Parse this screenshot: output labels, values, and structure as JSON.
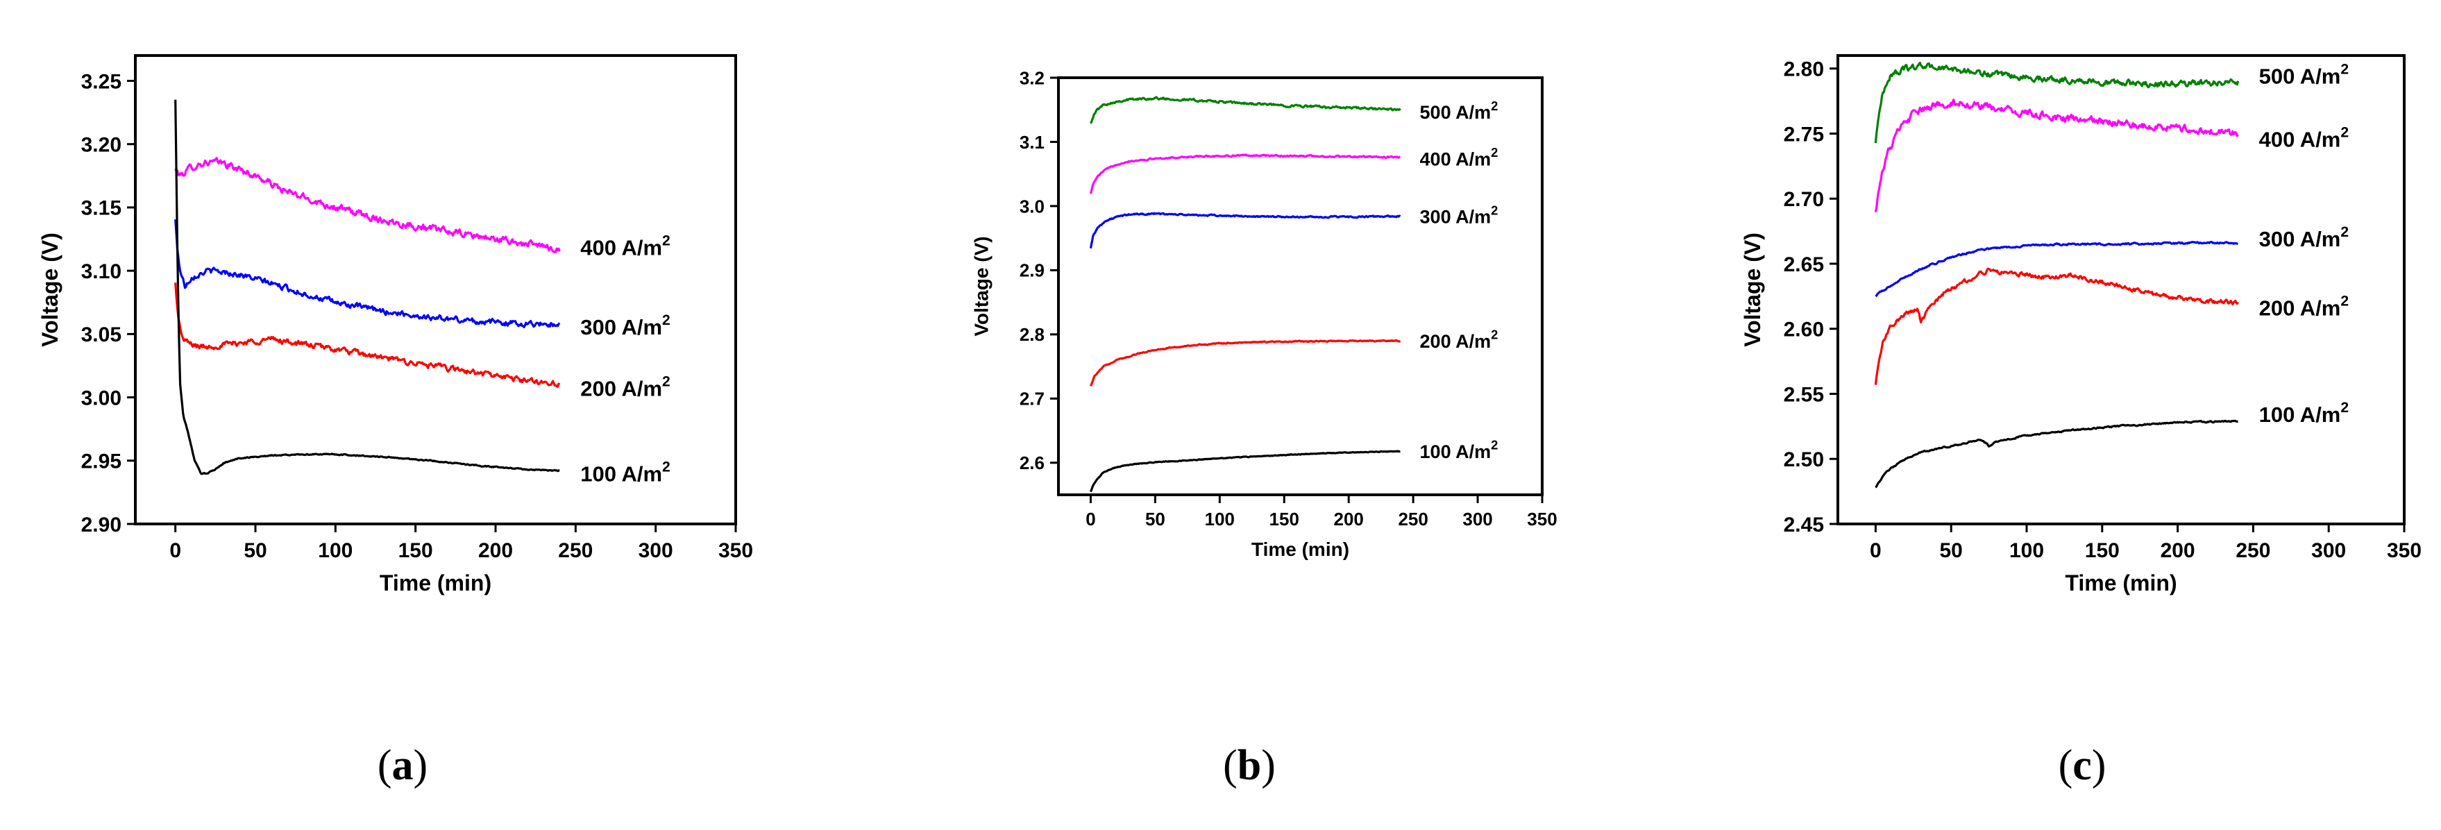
{
  "chart_data": [
    {
      "type": "line",
      "caption": "(a)",
      "xlabel": "Time (min)",
      "ylabel": "Voltage (V)",
      "xlim": [
        -25,
        350
      ],
      "ylim": [
        2.9,
        3.27
      ],
      "xticks": [
        0,
        50,
        100,
        150,
        200,
        250,
        300,
        350
      ],
      "yticks": [
        2.9,
        2.95,
        3.0,
        3.05,
        3.1,
        3.15,
        3.2,
        3.25
      ],
      "ytick_labels": [
        "2.90",
        "2.95",
        "3.00",
        "3.05",
        "3.10",
        "3.15",
        "3.20",
        "3.25"
      ],
      "grid": false,
      "series": [
        {
          "name": "400 A/m²",
          "color": "#ff00ff",
          "noise": 0.005,
          "x": [
            0,
            3,
            10,
            20,
            30,
            50,
            70,
            100,
            130,
            160,
            190,
            220,
            240
          ],
          "y": [
            3.18,
            3.175,
            3.182,
            3.186,
            3.185,
            3.175,
            3.162,
            3.15,
            3.14,
            3.133,
            3.127,
            3.121,
            3.117
          ]
        },
        {
          "name": "300 A/m²",
          "color": "#0000ff",
          "noise": 0.004,
          "x": [
            0,
            1,
            3,
            6,
            10,
            20,
            30,
            40,
            60,
            80,
            100,
            130,
            160,
            190,
            220,
            240
          ],
          "y": [
            3.14,
            3.12,
            3.1,
            3.088,
            3.095,
            3.1,
            3.099,
            3.097,
            3.09,
            3.082,
            3.075,
            3.068,
            3.063,
            3.06,
            3.058,
            3.058
          ]
        },
        {
          "name": "200 A/m²",
          "color": "#ff0000",
          "noise": 0.004,
          "x": [
            0,
            2,
            5,
            10,
            15,
            20,
            40,
            60,
            80,
            100,
            130,
            160,
            190,
            220,
            240
          ],
          "y": [
            3.09,
            3.06,
            3.045,
            3.042,
            3.04,
            3.04,
            3.043,
            3.046,
            3.042,
            3.038,
            3.031,
            3.025,
            3.019,
            3.013,
            3.011
          ]
        },
        {
          "name": "100 A/m²",
          "color": "#000000",
          "noise": 0.0008,
          "x": [
            0,
            1,
            2,
            3,
            5,
            8,
            12,
            16,
            20,
            25,
            30,
            40,
            60,
            80,
            100,
            130,
            160,
            190,
            220,
            240
          ],
          "y": [
            3.235,
            3.14,
            3.06,
            3.01,
            2.985,
            2.972,
            2.95,
            2.94,
            2.94,
            2.943,
            2.948,
            2.952,
            2.954,
            2.955,
            2.955,
            2.953,
            2.95,
            2.946,
            2.943,
            2.942
          ]
        }
      ]
    },
    {
      "type": "line",
      "caption": "(b)",
      "xlabel": "Time (min)",
      "ylabel": "Voltage (V)",
      "xlim": [
        -25,
        350
      ],
      "ylim": [
        2.55,
        3.2
      ],
      "xticks": [
        0,
        50,
        100,
        150,
        200,
        250,
        300,
        350
      ],
      "yticks": [
        2.6,
        2.7,
        2.8,
        2.9,
        3.0,
        3.1,
        3.2
      ],
      "ytick_labels": [
        "2.6",
        "2.7",
        "2.8",
        "2.9",
        "3.0",
        "3.1",
        "3.2"
      ],
      "grid": false,
      "series": [
        {
          "name": "500 A/m²",
          "color": "#008000",
          "noise": 0.003,
          "x": [
            0,
            2,
            5,
            10,
            20,
            30,
            50,
            80,
            120,
            160,
            200,
            240
          ],
          "y": [
            3.13,
            3.14,
            3.15,
            3.158,
            3.163,
            3.166,
            3.168,
            3.165,
            3.16,
            3.156,
            3.153,
            3.15
          ]
        },
        {
          "name": "400 A/m²",
          "color": "#ff00ff",
          "noise": 0.002,
          "x": [
            0,
            2,
            5,
            10,
            20,
            30,
            50,
            80,
            120,
            160,
            200,
            240
          ],
          "y": [
            3.02,
            3.035,
            3.045,
            3.055,
            3.065,
            3.07,
            3.074,
            3.077,
            3.079,
            3.078,
            3.077,
            3.076
          ]
        },
        {
          "name": "300 A/m²",
          "color": "#0000ff",
          "noise": 0.002,
          "x": [
            0,
            2,
            5,
            10,
            20,
            30,
            50,
            80,
            120,
            160,
            200,
            240
          ],
          "y": [
            2.935,
            2.955,
            2.965,
            2.975,
            2.983,
            2.987,
            2.988,
            2.986,
            2.984,
            2.983,
            2.983,
            2.984
          ]
        },
        {
          "name": "200 A/m²",
          "color": "#ff0000",
          "noise": 0.0015,
          "x": [
            0,
            3,
            10,
            20,
            40,
            60,
            80,
            100,
            130,
            160,
            200,
            240
          ],
          "y": [
            2.72,
            2.735,
            2.75,
            2.76,
            2.772,
            2.779,
            2.783,
            2.786,
            2.788,
            2.789,
            2.79,
            2.79
          ]
        },
        {
          "name": "100 A/m²",
          "color": "#000000",
          "noise": 0.001,
          "x": [
            0,
            2,
            5,
            10,
            20,
            30,
            50,
            70,
            100,
            130,
            160,
            200,
            240
          ],
          "y": [
            2.555,
            2.565,
            2.575,
            2.585,
            2.593,
            2.597,
            2.601,
            2.603,
            2.607,
            2.61,
            2.613,
            2.616,
            2.618
          ]
        }
      ]
    },
    {
      "type": "line",
      "caption": "(c)",
      "xlabel": "Time (min)",
      "ylabel": "Voltage (V)",
      "xlim": [
        -25,
        350
      ],
      "ylim": [
        2.45,
        2.81
      ],
      "xticks": [
        0,
        50,
        100,
        150,
        200,
        250,
        300,
        350
      ],
      "yticks": [
        2.45,
        2.5,
        2.55,
        2.6,
        2.65,
        2.7,
        2.75,
        2.8
      ],
      "ytick_labels": [
        "2.45",
        "2.50",
        "2.55",
        "2.60",
        "2.65",
        "2.70",
        "2.75",
        "2.80"
      ],
      "grid": false,
      "series": [
        {
          "name": "500 A/m²",
          "color": "#008000",
          "noise": 0.004,
          "x": [
            0,
            2,
            5,
            10,
            20,
            30,
            40,
            60,
            80,
            100,
            130,
            160,
            190,
            220,
            240
          ],
          "y": [
            2.743,
            2.765,
            2.782,
            2.795,
            2.8,
            2.802,
            2.801,
            2.798,
            2.795,
            2.793,
            2.791,
            2.789,
            2.788,
            2.789,
            2.79
          ]
        },
        {
          "name": "400 A/m²",
          "color": "#ff00ff",
          "noise": 0.005,
          "x": [
            0,
            3,
            8,
            15,
            25,
            40,
            55,
            70,
            90,
            110,
            130,
            160,
            190,
            220,
            240
          ],
          "y": [
            2.69,
            2.715,
            2.735,
            2.752,
            2.765,
            2.772,
            2.774,
            2.771,
            2.767,
            2.764,
            2.761,
            2.758,
            2.755,
            2.752,
            2.75
          ]
        },
        {
          "name": "300 A/m²",
          "color": "#0000ff",
          "noise": 0.0012,
          "x": [
            0,
            3,
            10,
            20,
            30,
            50,
            70,
            100,
            130,
            160,
            200,
            240
          ],
          "y": [
            2.625,
            2.628,
            2.633,
            2.64,
            2.646,
            2.655,
            2.661,
            2.664,
            2.665,
            2.665,
            2.666,
            2.666
          ]
        },
        {
          "name": "200 A/m²",
          "color": "#ff0000",
          "noise": 0.003,
          "x": [
            0,
            2,
            5,
            10,
            20,
            28,
            30,
            35,
            45,
            60,
            75,
            90,
            110,
            130,
            160,
            190,
            220,
            240
          ],
          "y": [
            2.557,
            2.575,
            2.59,
            2.602,
            2.612,
            2.615,
            2.605,
            2.615,
            2.627,
            2.637,
            2.645,
            2.643,
            2.64,
            2.641,
            2.633,
            2.625,
            2.621,
            2.62
          ]
        },
        {
          "name": "100 A/m²",
          "color": "#000000",
          "noise": 0.001,
          "x": [
            0,
            2,
            5,
            10,
            20,
            30,
            50,
            70,
            75,
            80,
            100,
            130,
            160,
            200,
            240
          ],
          "y": [
            2.478,
            2.482,
            2.487,
            2.493,
            2.5,
            2.505,
            2.51,
            2.515,
            2.51,
            2.513,
            2.518,
            2.522,
            2.525,
            2.528,
            2.529
          ]
        }
      ]
    }
  ]
}
